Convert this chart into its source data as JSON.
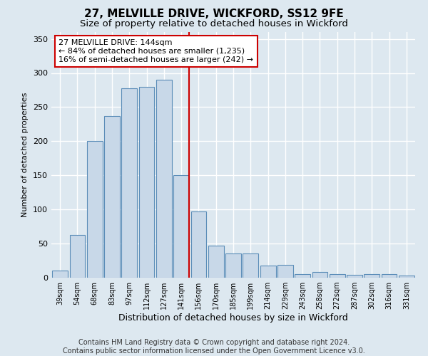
{
  "title": "27, MELVILLE DRIVE, WICKFORD, SS12 9FE",
  "subtitle": "Size of property relative to detached houses in Wickford",
  "xlabel": "Distribution of detached houses by size in Wickford",
  "ylabel": "Number of detached properties",
  "categories": [
    "39sqm",
    "54sqm",
    "68sqm",
    "83sqm",
    "97sqm",
    "112sqm",
    "127sqm",
    "141sqm",
    "156sqm",
    "170sqm",
    "185sqm",
    "199sqm",
    "214sqm",
    "229sqm",
    "243sqm",
    "258sqm",
    "272sqm",
    "287sqm",
    "302sqm",
    "316sqm",
    "331sqm"
  ],
  "values": [
    10,
    63,
    200,
    237,
    278,
    280,
    290,
    150,
    97,
    47,
    35,
    35,
    18,
    19,
    5,
    8,
    5,
    4,
    5,
    5,
    3
  ],
  "bar_color": "#c8d8e8",
  "bar_edge_color": "#5b8db8",
  "property_bin_index": 7,
  "red_line_color": "#cc0000",
  "annotation_text": "27 MELVILLE DRIVE: 144sqm\n← 84% of detached houses are smaller (1,235)\n16% of semi-detached houses are larger (242) →",
  "annotation_box_color": "#ffffff",
  "annotation_box_edge_color": "#cc0000",
  "footer_line1": "Contains HM Land Registry data © Crown copyright and database right 2024.",
  "footer_line2": "Contains public sector information licensed under the Open Government Licence v3.0.",
  "ylim": [
    0,
    360
  ],
  "yticks": [
    0,
    50,
    100,
    150,
    200,
    250,
    300,
    350
  ],
  "background_color": "#dde8f0",
  "grid_color": "#ffffff",
  "title_fontsize": 11,
  "subtitle_fontsize": 9.5,
  "footer_fontsize": 7
}
